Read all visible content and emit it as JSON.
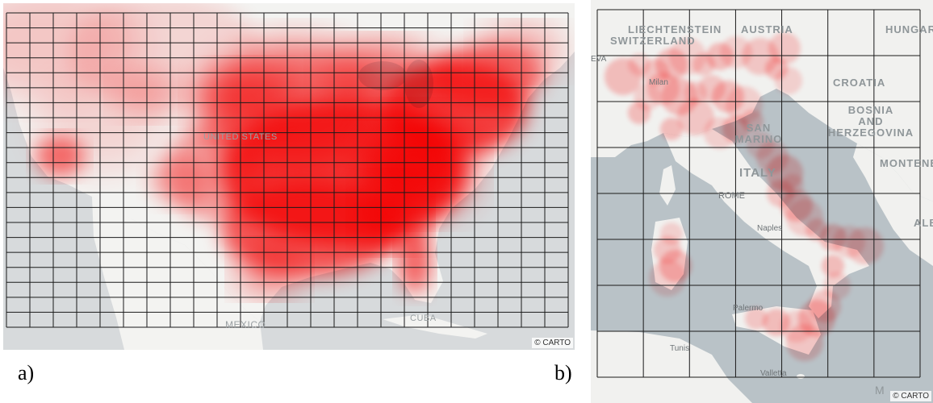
{
  "panel_a": {
    "caption": "a)",
    "labels": {
      "country": "UNITED STATES",
      "mexico": "MEXICO",
      "cuba": "CUBA"
    },
    "credit": "© CARTO",
    "grid": {
      "columns": 24,
      "rows": 21
    }
  },
  "panel_b": {
    "caption": "b)",
    "labels": {
      "liechtenstein": "LIECHTENSTEIN",
      "switzerland": "SWITZERLAND",
      "austria": "AUSTRIA",
      "hungary": "HUNGAR",
      "croatia": "CROATIA",
      "bosnia_line1": "BOSNIA",
      "bosnia_line2": "AND",
      "bosnia_line3": "HERZEGOVINA",
      "montenegro": "MONTENE",
      "san_marino_line1": "SAN",
      "san_marino_line2": "MARINO",
      "italy": "ITALY",
      "albania": "ALBA",
      "geneva": "EVA",
      "milan": "Milan",
      "rome": "ROME",
      "naples": "Naples",
      "palermo": "Palermo",
      "tunis": "Tunis",
      "valletta": "Valletta",
      "sea": "M"
    },
    "credit": "© CARTO",
    "grid": {
      "columns": 7,
      "rows": 8
    }
  },
  "colors": {
    "heat": "#ff0000",
    "grid": "#1a1a1a",
    "land": "#f2f2f0",
    "water_a": "#d7dadc",
    "water_b": "#b9c2c7"
  }
}
